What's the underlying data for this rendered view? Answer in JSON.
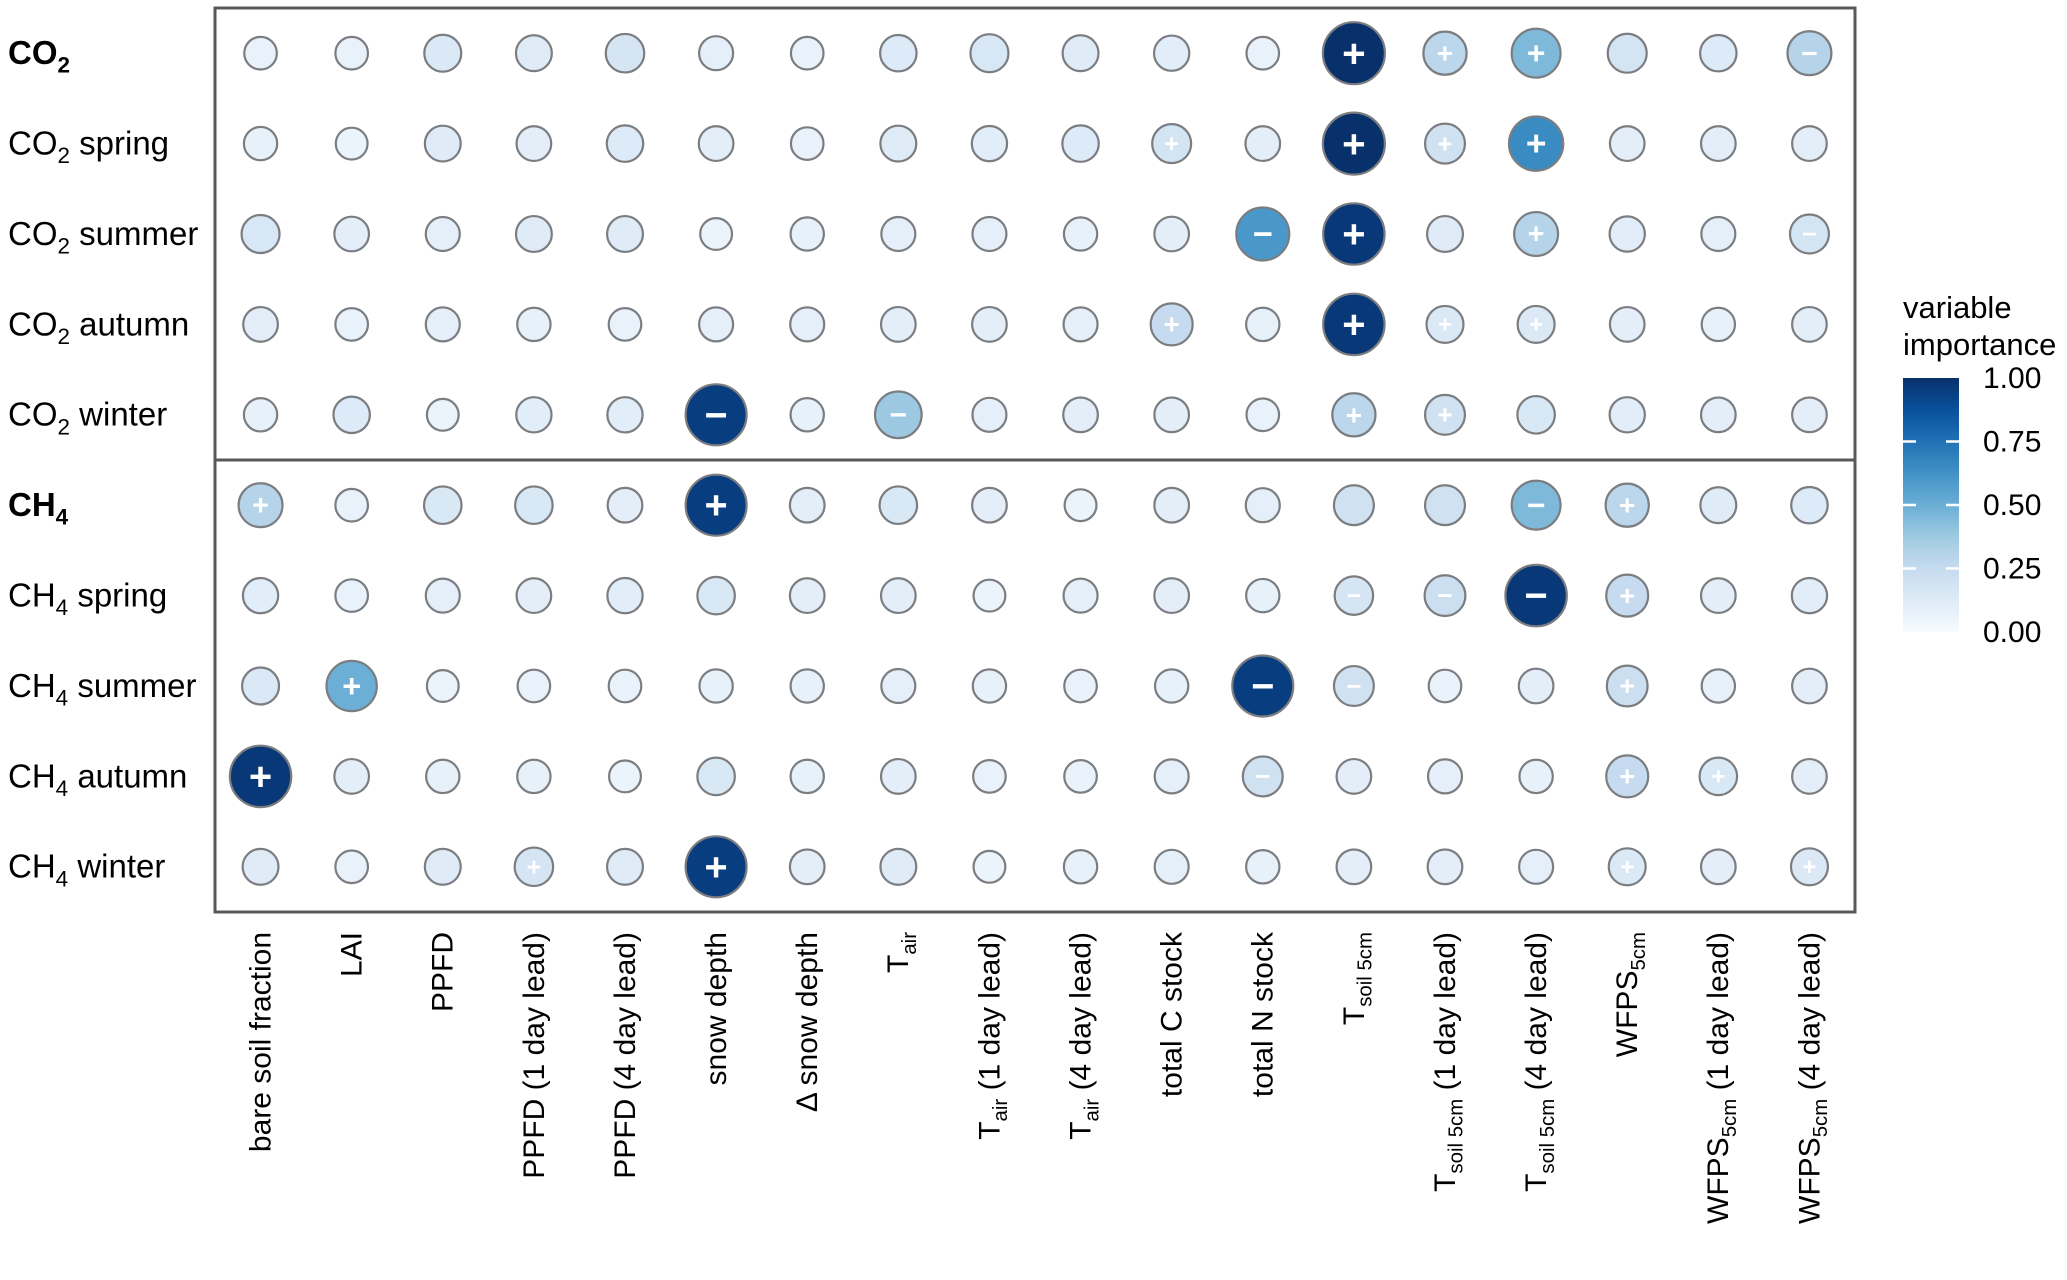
{
  "legend": {
    "title_lines": [
      "variable",
      "importance"
    ],
    "ticks": [
      "1.00",
      "0.75",
      "0.50",
      "0.25",
      "0.00"
    ],
    "color_high": "#08306b",
    "color_low": "#f7fbff"
  },
  "chart_data": {
    "type": "heatmap",
    "subtype": "bubble-matrix",
    "value_range": [
      0,
      1
    ],
    "value_label": "variable importance",
    "sign_encoding": "+ positive relationship, − negative relationship",
    "columns": [
      [
        {
          "t": "bare soil fraction"
        }
      ],
      [
        {
          "t": "LAI"
        }
      ],
      [
        {
          "t": "PPFD"
        }
      ],
      [
        {
          "t": "PPFD (1 day lead)"
        }
      ],
      [
        {
          "t": "PPFD (4 day lead)"
        }
      ],
      [
        {
          "t": "snow depth"
        }
      ],
      [
        {
          "t": "Δ snow depth"
        }
      ],
      [
        {
          "t": "T"
        },
        {
          "t": "air",
          "sub": true
        }
      ],
      [
        {
          "t": "T"
        },
        {
          "t": "air",
          "sub": true
        },
        {
          "t": " (1 day lead)"
        }
      ],
      [
        {
          "t": "T"
        },
        {
          "t": "air",
          "sub": true
        },
        {
          "t": " (4 day lead)"
        }
      ],
      [
        {
          "t": "total C stock"
        }
      ],
      [
        {
          "t": "total N stock"
        }
      ],
      [
        {
          "t": "T"
        },
        {
          "t": "soil 5cm",
          "sub": true
        }
      ],
      [
        {
          "t": "T"
        },
        {
          "t": "soil 5cm",
          "sub": true
        },
        {
          "t": " (1 day lead)"
        }
      ],
      [
        {
          "t": "T"
        },
        {
          "t": "soil 5cm",
          "sub": true
        },
        {
          "t": " (4 day lead)"
        }
      ],
      [
        {
          "t": "WFPS"
        },
        {
          "t": "5cm",
          "sub": true
        }
      ],
      [
        {
          "t": "WFPS"
        },
        {
          "t": "5cm",
          "sub": true
        },
        {
          "t": " (1 day lead)"
        }
      ],
      [
        {
          "t": "WFPS"
        },
        {
          "t": "5cm",
          "sub": true
        },
        {
          "t": " (4 day lead)"
        }
      ]
    ],
    "rows": [
      {
        "id": "co2",
        "group": "CO2",
        "bold": true,
        "label_parts": [
          {
            "t": "CO"
          },
          {
            "t": "2",
            "sub": true
          }
        ],
        "values": [
          0.07,
          0.07,
          0.14,
          0.12,
          0.17,
          0.09,
          0.07,
          0.13,
          0.16,
          0.12,
          0.11,
          0.07,
          1.0,
          0.28,
          0.45,
          0.18,
          0.13,
          0.3
        ],
        "signs": [
          "",
          "",
          "",
          "",
          "",
          "",
          "",
          "",
          "",
          "",
          "",
          "",
          "+",
          "+",
          "+",
          "",
          "",
          "-"
        ]
      },
      {
        "id": "co2-spring",
        "group": "CO2",
        "bold": false,
        "label_parts": [
          {
            "t": "CO"
          },
          {
            "t": "2",
            "sub": true
          },
          {
            "t": " spring"
          }
        ],
        "values": [
          0.08,
          0.06,
          0.12,
          0.1,
          0.13,
          0.1,
          0.07,
          0.12,
          0.11,
          0.13,
          0.18,
          0.1,
          1.0,
          0.2,
          0.65,
          0.1,
          0.1,
          0.1
        ],
        "signs": [
          "",
          "",
          "",
          "",
          "",
          "",
          "",
          "",
          "",
          "",
          "+",
          "",
          "+",
          "+",
          "+",
          "",
          "",
          ""
        ]
      },
      {
        "id": "co2-summer",
        "group": "CO2",
        "bold": false,
        "label_parts": [
          {
            "t": "CO"
          },
          {
            "t": "2",
            "sub": true
          },
          {
            "t": " summer"
          }
        ],
        "values": [
          0.16,
          0.1,
          0.09,
          0.12,
          0.12,
          0.06,
          0.08,
          0.09,
          0.09,
          0.08,
          0.1,
          0.6,
          0.97,
          0.12,
          0.3,
          0.11,
          0.09,
          0.18
        ],
        "signs": [
          "",
          "",
          "",
          "",
          "",
          "",
          "",
          "",
          "",
          "",
          "",
          "-",
          "+",
          "",
          "+",
          "",
          "",
          "-"
        ]
      },
      {
        "id": "co2-autumn",
        "group": "CO2",
        "bold": false,
        "label_parts": [
          {
            "t": "CO"
          },
          {
            "t": "2",
            "sub": true
          },
          {
            "t": " autumn"
          }
        ],
        "values": [
          0.1,
          0.07,
          0.09,
          0.08,
          0.07,
          0.09,
          0.09,
          0.1,
          0.1,
          0.09,
          0.25,
          0.08,
          0.97,
          0.14,
          0.14,
          0.1,
          0.08,
          0.1
        ],
        "signs": [
          "",
          "",
          "",
          "",
          "",
          "",
          "",
          "",
          "",
          "",
          "+",
          "",
          "+",
          "+",
          "+",
          "",
          "",
          ""
        ]
      },
      {
        "id": "co2-winter",
        "group": "CO2",
        "bold": false,
        "label_parts": [
          {
            "t": "CO"
          },
          {
            "t": "2",
            "sub": true
          },
          {
            "t": " winter"
          }
        ],
        "values": [
          0.08,
          0.13,
          0.06,
          0.11,
          0.11,
          0.95,
          0.08,
          0.38,
          0.09,
          0.1,
          0.1,
          0.07,
          0.28,
          0.2,
          0.15,
          0.11,
          0.1,
          0.1
        ],
        "signs": [
          "",
          "",
          "",
          "",
          "",
          "-",
          "",
          "-",
          "",
          "",
          "",
          "",
          "+",
          "+",
          "",
          "",
          "",
          ""
        ]
      },
      {
        "id": "ch4",
        "group": "CH4",
        "bold": true,
        "label_parts": [
          {
            "t": "CH"
          },
          {
            "t": "4",
            "sub": true
          }
        ],
        "values": [
          0.3,
          0.07,
          0.15,
          0.15,
          0.1,
          0.95,
          0.1,
          0.15,
          0.1,
          0.06,
          0.1,
          0.09,
          0.2,
          0.2,
          0.45,
          0.28,
          0.12,
          0.13
        ],
        "signs": [
          "+",
          "",
          "",
          "",
          "",
          "+",
          "",
          "",
          "",
          "",
          "",
          "",
          "",
          "",
          "-",
          "+",
          "",
          ""
        ]
      },
      {
        "id": "ch4-spring",
        "group": "CH4",
        "bold": false,
        "label_parts": [
          {
            "t": "CH"
          },
          {
            "t": "4",
            "sub": true
          },
          {
            "t": " spring"
          }
        ],
        "values": [
          0.11,
          0.07,
          0.09,
          0.1,
          0.11,
          0.15,
          0.1,
          0.1,
          0.06,
          0.09,
          0.1,
          0.08,
          0.17,
          0.22,
          0.97,
          0.25,
          0.1,
          0.11
        ],
        "signs": [
          "",
          "",
          "",
          "",
          "",
          "",
          "",
          "",
          "",
          "",
          "",
          "",
          "-",
          "-",
          "-",
          "+",
          "",
          ""
        ]
      },
      {
        "id": "ch4-summer",
        "group": "CH4",
        "bold": false,
        "label_parts": [
          {
            "t": "CH"
          },
          {
            "t": "4",
            "sub": true
          },
          {
            "t": " summer"
          }
        ],
        "values": [
          0.14,
          0.5,
          0.06,
          0.07,
          0.07,
          0.08,
          0.08,
          0.09,
          0.08,
          0.07,
          0.08,
          0.95,
          0.2,
          0.07,
          0.1,
          0.22,
          0.08,
          0.1
        ],
        "signs": [
          "",
          "+",
          "",
          "",
          "",
          "",
          "",
          "",
          "",
          "",
          "",
          "-",
          "-",
          "",
          "",
          "+",
          "",
          ""
        ]
      },
      {
        "id": "ch4-autumn",
        "group": "CH4",
        "bold": false,
        "label_parts": [
          {
            "t": "CH"
          },
          {
            "t": "4",
            "sub": true
          },
          {
            "t": " autumn"
          }
        ],
        "values": [
          0.97,
          0.1,
          0.08,
          0.08,
          0.06,
          0.15,
          0.08,
          0.1,
          0.07,
          0.07,
          0.09,
          0.2,
          0.1,
          0.09,
          0.08,
          0.25,
          0.15,
          0.1
        ],
        "signs": [
          "+",
          "",
          "",
          "",
          "",
          "",
          "",
          "",
          "",
          "",
          "",
          "-",
          "",
          "",
          "",
          "+",
          "+",
          ""
        ]
      },
      {
        "id": "ch4-winter",
        "group": "CH4",
        "bold": false,
        "label_parts": [
          {
            "t": "CH"
          },
          {
            "t": "4",
            "sub": true
          },
          {
            "t": " winter"
          }
        ],
        "values": [
          0.12,
          0.07,
          0.12,
          0.17,
          0.12,
          0.95,
          0.1,
          0.12,
          0.06,
          0.08,
          0.09,
          0.08,
          0.1,
          0.1,
          0.09,
          0.14,
          0.1,
          0.14
        ],
        "signs": [
          "",
          "",
          "",
          "+",
          "",
          "+",
          "",
          "",
          "",
          "",
          "",
          "",
          "",
          "",
          "",
          "+",
          "",
          "+"
        ]
      }
    ],
    "colorbar_stops": [
      [
        0.0,
        "#f7fbff"
      ],
      [
        0.125,
        "#deebf7"
      ],
      [
        0.25,
        "#c6dbef"
      ],
      [
        0.375,
        "#9ecae1"
      ],
      [
        0.5,
        "#6baed6"
      ],
      [
        0.625,
        "#4292c6"
      ],
      [
        0.75,
        "#2171b5"
      ],
      [
        0.875,
        "#08519c"
      ],
      [
        1.0,
        "#08306b"
      ]
    ],
    "panel_border_color": "#58595b",
    "circle_stroke_color": "#7b7d80",
    "text_color": "#000000"
  }
}
